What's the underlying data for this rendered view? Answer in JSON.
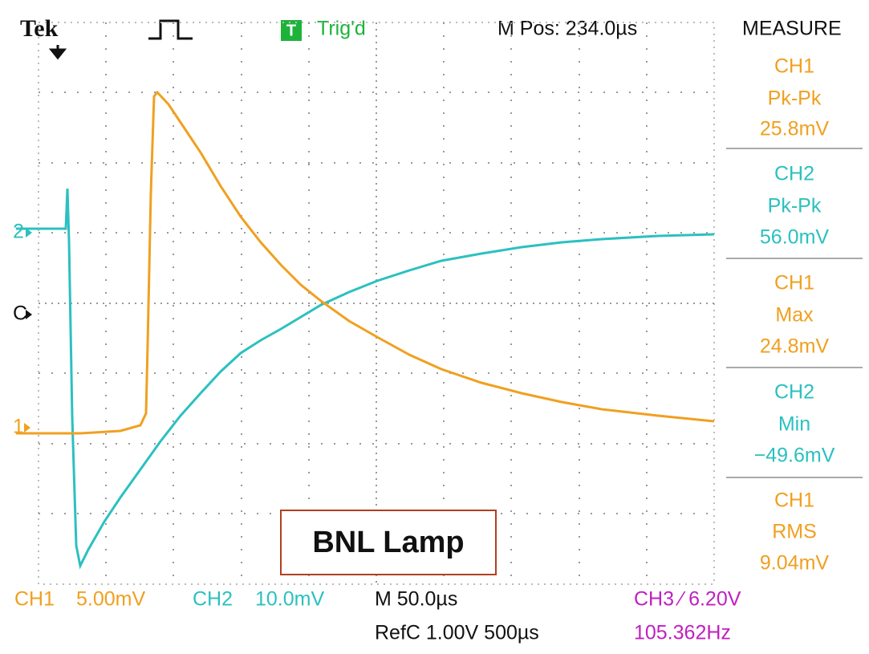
{
  "header": {
    "brand": "Tek",
    "trigger_badge": "T",
    "trigger_status": "Trig'd",
    "position": "M Pos: 234.0µs",
    "panel_title": "MEASURE"
  },
  "markers": {
    "ch2": "2",
    "ref": "C",
    "ch1": "1"
  },
  "measurements": [
    {
      "channel": "CH1",
      "label": "Pk-Pk",
      "value": "25.8mV"
    },
    {
      "channel": "CH2",
      "label": "Pk-Pk",
      "value": "56.0mV"
    },
    {
      "channel": "CH1",
      "label": "Max",
      "value": "24.8mV"
    },
    {
      "channel": "CH2",
      "label": "Min",
      "value": "−49.6mV"
    },
    {
      "channel": "CH1",
      "label": "RMS",
      "value": "9.04mV"
    }
  ],
  "footer": {
    "ch1_label": "CH1",
    "ch1_scale": "5.00mV",
    "ch2_label": "CH2",
    "ch2_scale": "10.0mV",
    "timebase": "M 50.0µs",
    "ch3_trigger": "CH3 ⁄ 6.20V",
    "reference": "RefC 1.00V 500µs",
    "frequency": "105.362Hz"
  },
  "annotation": "BNL Lamp"
}
